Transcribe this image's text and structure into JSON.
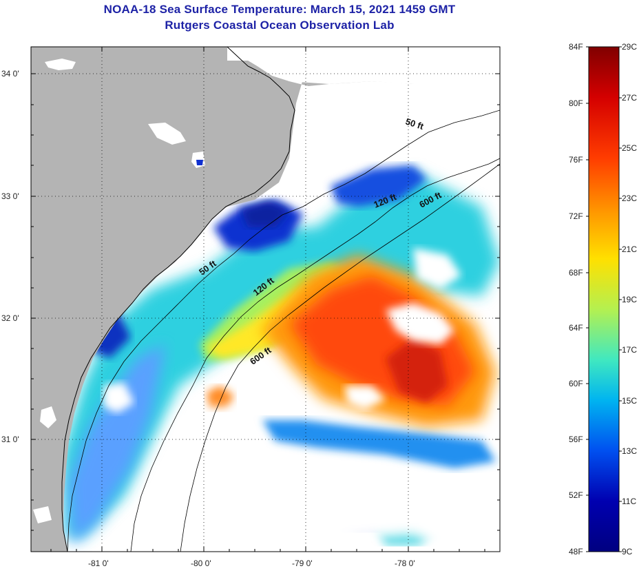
{
  "header": {
    "title_line1": "NOAA-18 Sea Surface Temperature:  March 15, 2021 1459 GMT",
    "title_line2": "Rutgers Coastal Ocean Observation Lab"
  },
  "map": {
    "lat_labels": [
      "34 0'",
      "33 0'",
      "32 0'",
      "31 0'"
    ],
    "lon_labels": [
      "-81 0'",
      "-80 0'",
      "-79 0'",
      "-78 0'"
    ],
    "contour_labels": [
      "50 ft",
      "120 ft",
      "600 ft",
      "50 ft",
      "120 ft",
      "600 ft"
    ]
  },
  "colorbar": {
    "fahrenheit_labels": [
      "84F",
      "80F",
      "76F",
      "72F",
      "68F",
      "64F",
      "60F",
      "56F",
      "52F",
      "48F"
    ],
    "celsius_labels": [
      "29C",
      "27C",
      "25C",
      "23C",
      "21C",
      "19C",
      "17C",
      "15C",
      "13C",
      "11C",
      "9C"
    ],
    "range_f": [
      48,
      84
    ],
    "range_c": [
      9,
      29
    ],
    "colors": [
      "#800000",
      "#d40000",
      "#ff3c00",
      "#ff9a00",
      "#ffe000",
      "#b4f050",
      "#40e8c0",
      "#00b4f0",
      "#0050f0",
      "#0000b0",
      "#000080"
    ]
  },
  "colors": {
    "land": "#b4b4b4",
    "title": "#1d22a6",
    "no_data": "#ffffff"
  }
}
